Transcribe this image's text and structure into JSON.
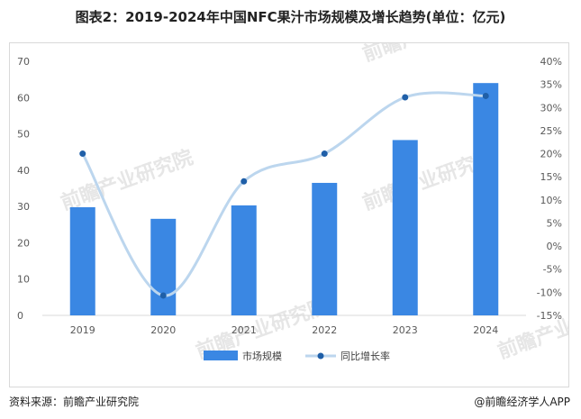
{
  "title": "图表2：2019-2024年中国NFC果汁市场规模及增长趋势(单位：亿元)",
  "footer": {
    "source": "资料来源：前瞻产业研究院",
    "brand": "@前瞻经济学人APP"
  },
  "watermark": "前瞻产业研究院",
  "colors": {
    "bar": "#3a87e3",
    "line": "#bcd6ee",
    "marker": "#1f5fa8",
    "axis_text": "#595959"
  },
  "chart_data": {
    "type": "bar",
    "categories": [
      "2019",
      "2020",
      "2021",
      "2022",
      "2023",
      "2024"
    ],
    "series": [
      {
        "name": "市场规模",
        "type": "bar",
        "axis": "left",
        "values": [
          29.8,
          26.6,
          30.3,
          36.5,
          48.3,
          64.0
        ]
      },
      {
        "name": "同比增长率",
        "type": "line",
        "axis": "right",
        "smooth": true,
        "values": [
          20.0,
          -10.7,
          14.0,
          20.0,
          32.2,
          32.5
        ]
      }
    ],
    "y_left": {
      "range": [
        0,
        70
      ],
      "ticks": [
        "0",
        "10",
        "20",
        "30",
        "40",
        "50",
        "60",
        "70"
      ]
    },
    "y_right": {
      "range": [
        -15,
        40
      ],
      "ticks": [
        "-15%",
        "-10%",
        "-5%",
        "0%",
        "5%",
        "10%",
        "15%",
        "20%",
        "25%",
        "30%",
        "35%",
        "40%"
      ]
    },
    "grid": false,
    "legend": "bottom"
  }
}
